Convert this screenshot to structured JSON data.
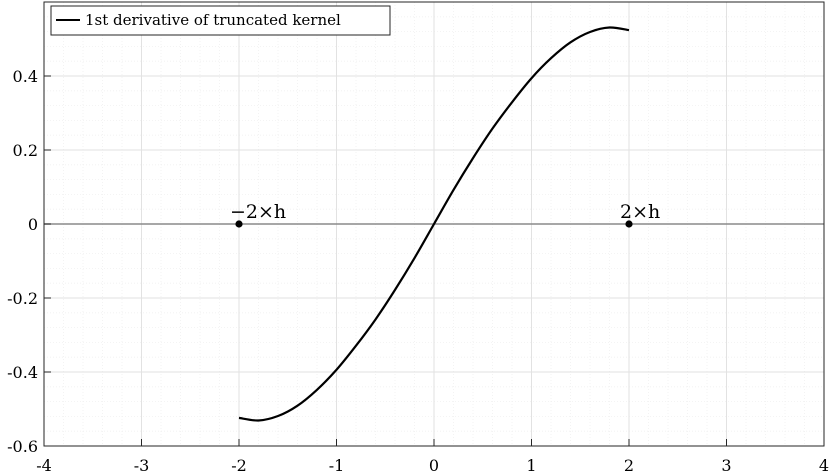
{
  "chart_data": {
    "type": "line",
    "title": "",
    "xlabel": "",
    "ylabel": "",
    "xlim": [
      -4,
      4
    ],
    "ylim": [
      -0.6,
      0.6
    ],
    "xticks": [
      -4,
      -3,
      -2,
      -1,
      0,
      1,
      2,
      3,
      4
    ],
    "xtick_labels": [
      "-4",
      "-3",
      "-2",
      "-1",
      "0",
      "1",
      "2",
      "3",
      "4"
    ],
    "yticks": [
      -0.6,
      -0.4,
      -0.2,
      0,
      0.2,
      0.4
    ],
    "ytick_labels": [
      "-0.6",
      "-0.4",
      "-0.2",
      "0",
      "0.2",
      "0.4"
    ],
    "grid": true,
    "minor_grid": true,
    "legend_position": "top-left",
    "zero_line": true,
    "series": [
      {
        "name": "1st derivative of truncated kernel",
        "color": "#000000",
        "x": [
          -2.0,
          -1.8,
          -1.6,
          -1.4,
          -1.2,
          -1.0,
          -0.8,
          -0.6,
          -0.4,
          -0.2,
          0.0,
          0.2,
          0.4,
          0.6,
          0.8,
          1.0,
          1.2,
          1.4,
          1.6,
          1.8,
          2.0
        ],
        "y": [
          -0.524,
          -0.531,
          -0.519,
          -0.491,
          -0.448,
          -0.394,
          -0.329,
          -0.258,
          -0.178,
          -0.092,
          0.0,
          0.092,
          0.178,
          0.258,
          0.329,
          0.394,
          0.448,
          0.491,
          0.519,
          0.531,
          0.524
        ]
      }
    ],
    "annotations": [
      {
        "x": -2,
        "y": 0,
        "text": "−2×h"
      },
      {
        "x": 2,
        "y": 0,
        "text": "2×h"
      }
    ]
  }
}
